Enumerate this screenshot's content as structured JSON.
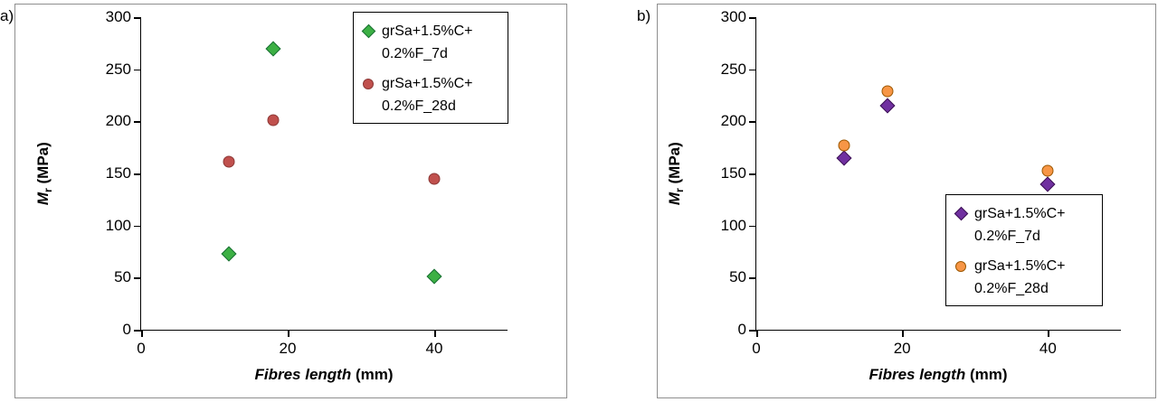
{
  "figure": {
    "panel_a_label": "a)",
    "panel_b_label": "b)"
  },
  "chart_data": [
    {
      "type": "scatter",
      "panel": "a",
      "ylabel_var": "M",
      "ylabel_sub": "r",
      "ylabel_unit": " (MPa)",
      "xlabel_text": "Fibres length",
      "xlabel_unit": " (mm)",
      "x_range": [
        0,
        50
      ],
      "y_range": [
        0,
        300
      ],
      "x_ticks": [
        0,
        20,
        40
      ],
      "y_ticks": [
        0,
        50,
        100,
        150,
        200,
        250,
        300
      ],
      "grid": false,
      "legend_position": "top-right",
      "series": [
        {
          "name": "grSa+1.5%C+0.2%F_7d",
          "label_lines": [
            "grSa+1.5%C+",
            "0.2%F_7d"
          ],
          "marker": "diamond",
          "fill": "#3CB044",
          "stroke": "#1A6E35",
          "points": [
            [
              12,
              73
            ],
            [
              18,
              270
            ],
            [
              40,
              51
            ]
          ]
        },
        {
          "name": "grSa+1.5%C+0.2%F_28d",
          "label_lines": [
            "grSa+1.5%C+",
            "0.2%F_28d"
          ],
          "marker": "circle",
          "fill": "#C0504D",
          "stroke": "#8C3836",
          "points": [
            [
              12,
              161
            ],
            [
              18,
              201
            ],
            [
              40,
              145
            ]
          ]
        }
      ]
    },
    {
      "type": "scatter",
      "panel": "b",
      "ylabel_var": "M",
      "ylabel_sub": "r",
      "ylabel_unit": " (MPa)",
      "xlabel_text": "Fibres length",
      "xlabel_unit": " (mm)",
      "x_range": [
        0,
        50
      ],
      "y_range": [
        0,
        300
      ],
      "x_ticks": [
        0,
        20,
        40
      ],
      "y_ticks": [
        0,
        50,
        100,
        150,
        200,
        250,
        300
      ],
      "grid": false,
      "legend_position": "bottom-right",
      "series": [
        {
          "name": "grSa+1.5%C+0.2%F_7d",
          "label_lines": [
            "grSa+1.5%C+",
            "0.2%F_7d"
          ],
          "marker": "diamond",
          "fill": "#7030A0",
          "stroke": "#3B1152",
          "points": [
            [
              12,
              165
            ],
            [
              18,
              215
            ],
            [
              40,
              140
            ]
          ]
        },
        {
          "name": "grSa+1.5%C+0.2%F_28d",
          "label_lines": [
            "grSa+1.5%C+",
            "0.2%F_28d"
          ],
          "marker": "circle",
          "fill": "#F79646",
          "stroke": "#9C5700",
          "points": [
            [
              12,
              177
            ],
            [
              18,
              229
            ],
            [
              40,
              153
            ]
          ]
        }
      ]
    }
  ]
}
